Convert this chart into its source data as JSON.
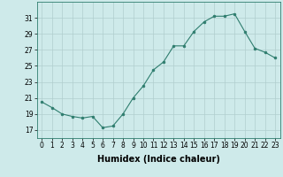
{
  "x": [
    0,
    1,
    2,
    3,
    4,
    5,
    6,
    7,
    8,
    9,
    10,
    11,
    12,
    13,
    14,
    15,
    16,
    17,
    18,
    19,
    20,
    21,
    22,
    23
  ],
  "y": [
    20.5,
    19.8,
    19.0,
    18.7,
    18.5,
    18.7,
    17.3,
    17.5,
    19.0,
    21.0,
    22.5,
    24.5,
    25.5,
    27.5,
    27.5,
    29.3,
    30.5,
    31.2,
    31.2,
    31.5,
    29.3,
    27.2,
    26.7,
    26.0
  ],
  "line_color": "#2e7d6e",
  "marker": "o",
  "marker_size": 2.0,
  "bg_color": "#ceeaea",
  "grid_color": "#b0cece",
  "xlabel": "Humidex (Indice chaleur)",
  "ylabel": "",
  "ylim": [
    16,
    33
  ],
  "yticks": [
    17,
    19,
    21,
    23,
    25,
    27,
    29,
    31
  ],
  "xlim": [
    -0.5,
    23.5
  ],
  "xticks": [
    0,
    1,
    2,
    3,
    4,
    5,
    6,
    7,
    8,
    9,
    10,
    11,
    12,
    13,
    14,
    15,
    16,
    17,
    18,
    19,
    20,
    21,
    22,
    23
  ],
  "tick_fontsize": 5.5,
  "xlabel_fontsize": 7.0
}
